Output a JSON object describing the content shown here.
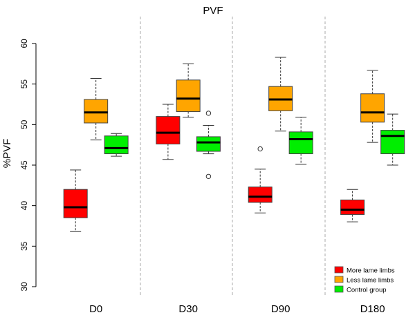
{
  "chart_data": {
    "type": "boxplot",
    "title": "PVF",
    "ylabel": "%PVF",
    "xlabel": "",
    "ylim": [
      30,
      60
    ],
    "yticks": [
      30,
      35,
      40,
      45,
      50,
      55,
      60
    ],
    "categories": [
      "D0",
      "D30",
      "D90",
      "D180"
    ],
    "grid": false,
    "legend_position": "bottom-right",
    "series": [
      {
        "name": "More lame limbs",
        "color": "#ff0000",
        "boxes": [
          {
            "whisker_low": 36.8,
            "q1": 38.5,
            "median": 39.8,
            "q3": 42.0,
            "whisker_high": 44.4,
            "outliers": []
          },
          {
            "whisker_low": 45.7,
            "q1": 47.6,
            "median": 49.0,
            "q3": 51.0,
            "whisker_high": 52.5,
            "outliers": []
          },
          {
            "whisker_low": 39.1,
            "q1": 40.4,
            "median": 41.1,
            "q3": 42.3,
            "whisker_high": 44.5,
            "outliers": [
              47.0
            ]
          },
          {
            "whisker_low": 38.0,
            "q1": 38.9,
            "median": 39.5,
            "q3": 40.7,
            "whisker_high": 42.0,
            "outliers": []
          }
        ]
      },
      {
        "name": "Less lame limbs",
        "color": "#ffa500",
        "boxes": [
          {
            "whisker_low": 48.1,
            "q1": 50.2,
            "median": 51.5,
            "q3": 53.1,
            "whisker_high": 55.7,
            "outliers": []
          },
          {
            "whisker_low": 50.9,
            "q1": 51.6,
            "median": 53.2,
            "q3": 55.5,
            "whisker_high": 57.5,
            "outliers": []
          },
          {
            "whisker_low": 49.2,
            "q1": 51.7,
            "median": 53.1,
            "q3": 54.7,
            "whisker_high": 58.3,
            "outliers": []
          },
          {
            "whisker_low": 47.8,
            "q1": 50.3,
            "median": 51.5,
            "q3": 53.8,
            "whisker_high": 56.7,
            "outliers": []
          }
        ]
      },
      {
        "name": "Control group",
        "color": "#00ee00",
        "boxes": [
          {
            "whisker_low": 46.1,
            "q1": 46.4,
            "median": 47.1,
            "q3": 48.6,
            "whisker_high": 48.9,
            "outliers": []
          },
          {
            "whisker_low": 46.4,
            "q1": 46.7,
            "median": 47.8,
            "q3": 48.5,
            "whisker_high": 49.9,
            "outliers": [
              51.4,
              43.6
            ]
          },
          {
            "whisker_low": 45.1,
            "q1": 46.4,
            "median": 48.2,
            "q3": 49.1,
            "whisker_high": 50.9,
            "outliers": []
          },
          {
            "whisker_low": 45.0,
            "q1": 46.4,
            "median": 48.6,
            "q3": 49.3,
            "whisker_high": 51.3,
            "outliers": []
          }
        ]
      }
    ]
  }
}
